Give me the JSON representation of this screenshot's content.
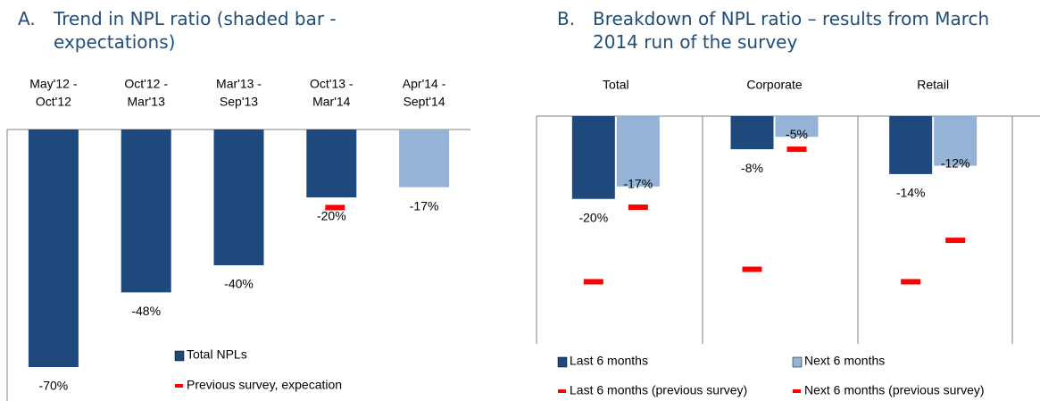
{
  "chart_data": [
    {
      "type": "bar",
      "label": "A.",
      "title": "Trend in NPL ratio (shaded bar - expectations)",
      "categories": [
        [
          "May'12 -",
          "Oct'12"
        ],
        [
          "Oct'12 -",
          "Mar'13"
        ],
        [
          "Mar'13 -",
          "Sep'13"
        ],
        [
          "Oct'13 -",
          "Mar'14"
        ],
        [
          "Apr'14 -",
          "Sept'14"
        ]
      ],
      "ylim": [
        -80,
        0
      ],
      "series": [
        {
          "name": "Total NPLs",
          "color": "#1F497D",
          "point_colors": [
            "#1F497D",
            "#1F497D",
            "#1F497D",
            "#1F497D",
            "#95B3D7"
          ],
          "values": [
            -70,
            -48,
            -40,
            -20,
            -17
          ],
          "value_labels": [
            "-70%",
            "-48%",
            "-40%",
            "-20%",
            "-17%"
          ]
        },
        {
          "name": "Previous survey, expecation",
          "color": "#FF0000",
          "marker": "dash",
          "values": [
            null,
            null,
            null,
            -23,
            null
          ]
        }
      ]
    },
    {
      "type": "bar",
      "label": "B.",
      "title": "Breakdown of NPL ratio – results from March 2014 run of the survey",
      "categories": [
        "Total",
        "Corporate",
        "Retail"
      ],
      "ylim": [
        -55,
        0
      ],
      "series": [
        {
          "name": "Last 6 months",
          "color": "#1F497D",
          "values": [
            -20,
            -8,
            -14
          ],
          "value_labels": [
            "-20%",
            "-8%",
            "-14%"
          ]
        },
        {
          "name": "Next 6 months",
          "color": "#95B3D7",
          "values": [
            -17,
            -5,
            -12
          ],
          "value_labels": [
            "-17%",
            "-5%",
            "-12%"
          ]
        },
        {
          "name": "Last 6 months (previous survey)",
          "color": "#FF0000",
          "marker": "dash",
          "values": [
            -40,
            -37,
            -40
          ]
        },
        {
          "name": "Next 6 months (previous survey)",
          "color": "#FF0000",
          "marker": "dash",
          "values": [
            -22,
            -8,
            -30
          ]
        }
      ]
    }
  ]
}
